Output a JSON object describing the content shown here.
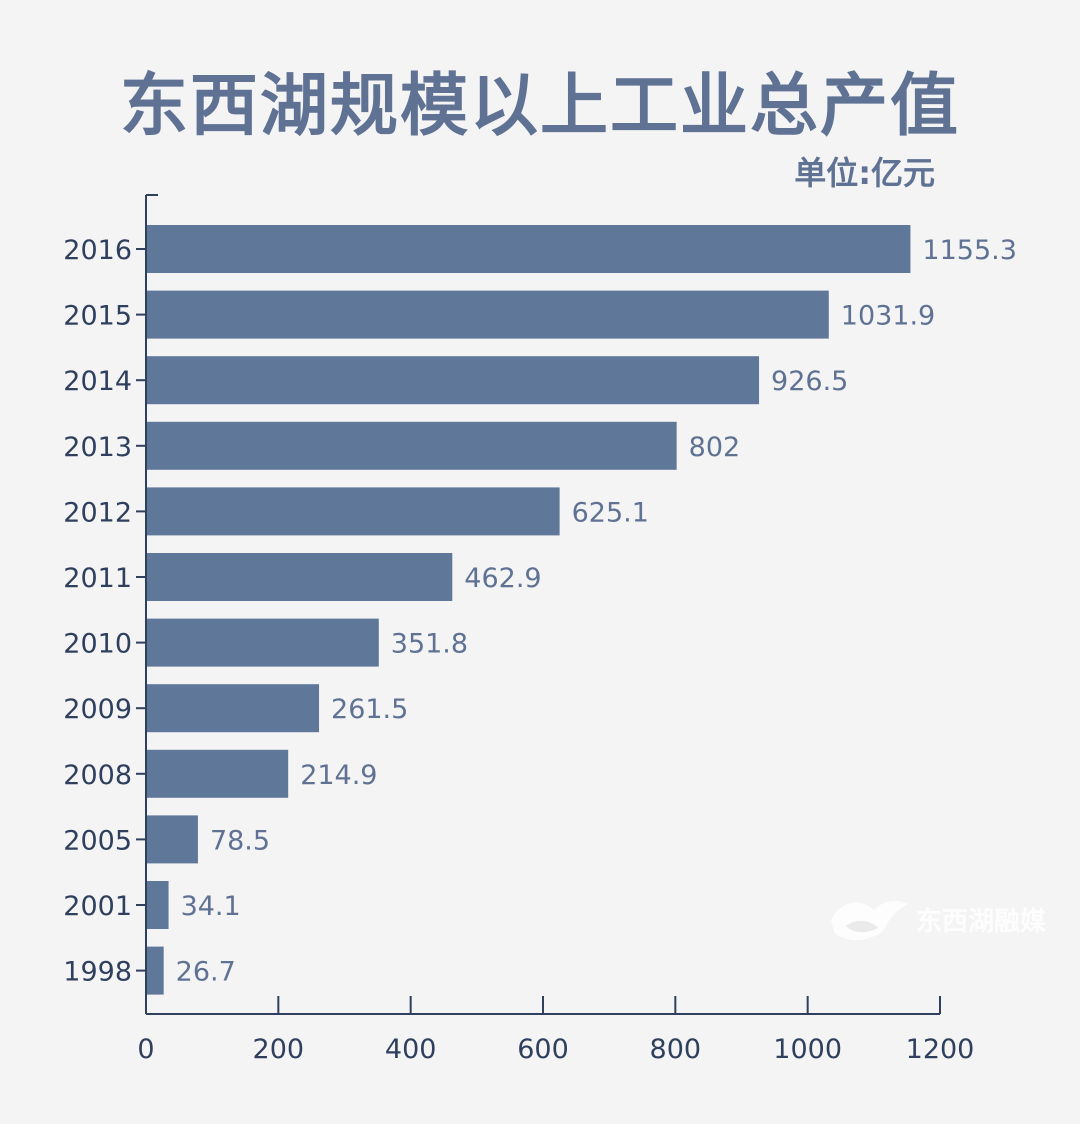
{
  "chart_data": {
    "type": "bar",
    "orientation": "horizontal",
    "title": "东西湖规模以上工业总产值",
    "unit_label": "单位:亿元",
    "categories": [
      "2016",
      "2015",
      "2014",
      "2013",
      "2012",
      "2011",
      "2010",
      "2009",
      "2008",
      "2005",
      "2001",
      "1998"
    ],
    "values": [
      1155.3,
      1031.9,
      926.5,
      802,
      625.1,
      462.9,
      351.8,
      261.5,
      214.9,
      78.5,
      34.1,
      26.7
    ],
    "value_labels": [
      "1155.3",
      "1031.9",
      "926.5",
      "802",
      "625.1",
      "462.9",
      "351.8",
      "261.5",
      "214.9",
      "78.5",
      "34.1",
      "26.7"
    ],
    "x_ticks": [
      0,
      200,
      400,
      600,
      800,
      1000,
      1200
    ],
    "xlim": [
      0,
      1200
    ],
    "xlabel": "",
    "ylabel": "",
    "grid": false,
    "bar_color": "#5f7799",
    "axis_color": "#2f3f5e"
  },
  "watermark": {
    "text": "东西湖融媒",
    "icon": "bird-logo-icon"
  }
}
